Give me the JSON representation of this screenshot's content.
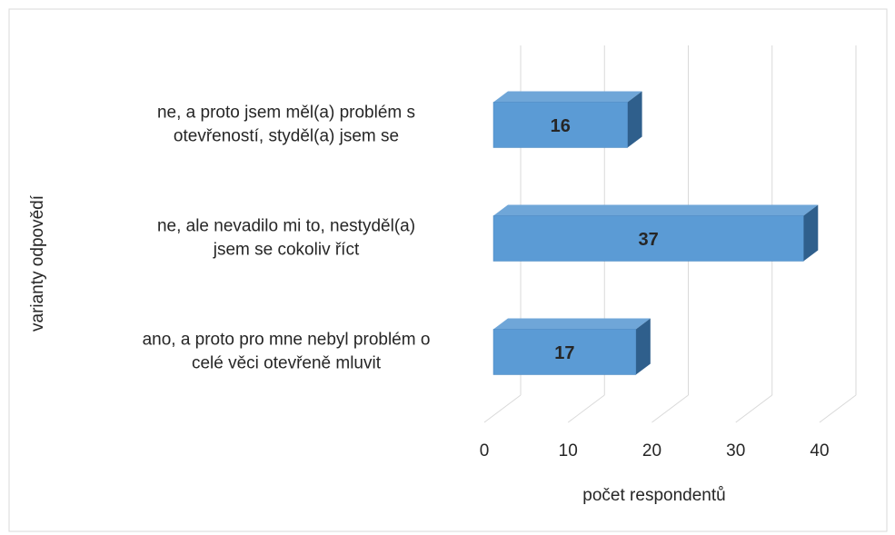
{
  "chart_data": {
    "type": "bar3d",
    "categories": [
      [
        "ne, a proto jsem měl(a) problém s",
        "otevřeností, styděl(a) jsem se"
      ],
      [
        "ne, ale nevadilo mi to, nestyděl(a)",
        "jsem se cokoliv říct"
      ],
      [
        "ano, a proto pro mne nebyl problém o",
        "celé věci otevřeně mluvit"
      ]
    ],
    "values": [
      16,
      37,
      17
    ],
    "color": "#5b9bd5",
    "xlim": [
      0,
      40
    ],
    "xticks": [
      0,
      10,
      20,
      30,
      40
    ],
    "grid": true,
    "xlabel": "počet respondentů",
    "ylabel": "varianty odpovědí"
  }
}
